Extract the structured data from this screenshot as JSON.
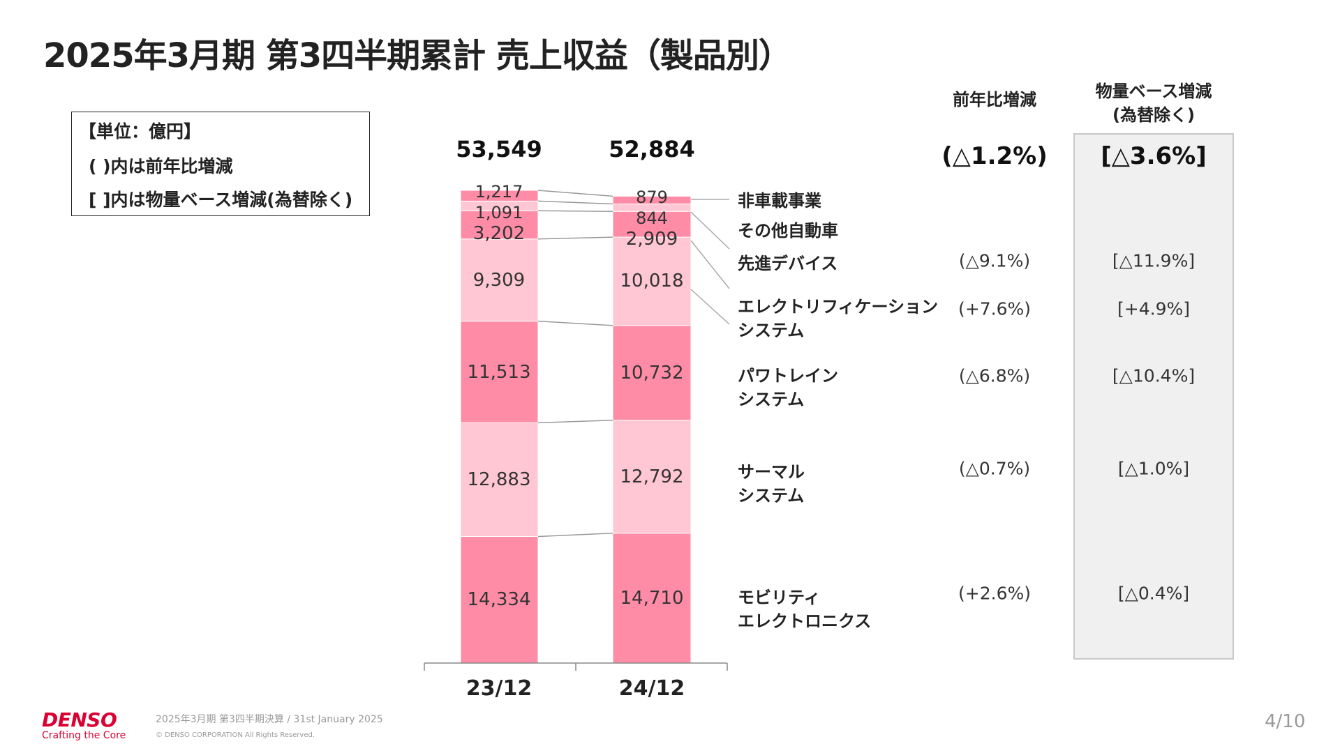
{
  "title": "2025年3月期 第3四半期累計 売上収益（製品別）",
  "unit_box": {
    "line1": "【単位：億円】",
    "line2": "( )内は前年比増減",
    "line3": "[ ]内は物量ベース増減(為替除く)"
  },
  "columns": {
    "yoy_header": "前年比増減",
    "volume_header_1": "物量ベース増減",
    "volume_header_2": "(為替除く)"
  },
  "colors": {
    "dark": "#ff8ca6",
    "light": "#ffc6d3",
    "connector": "#999999",
    "brand": "#dc0032"
  },
  "chart_data": {
    "type": "bar",
    "stacked": true,
    "categories": [
      "23/12",
      "24/12"
    ],
    "totals": [
      "53,549",
      "52,884"
    ],
    "total_values": [
      53549,
      52884
    ],
    "series": [
      {
        "name": "モビリティエレクトロニクス",
        "label_lines": [
          "モビリティ",
          "エレクトロニクス"
        ],
        "values": [
          14334,
          14710
        ],
        "labels": [
          "14,334",
          "14,710"
        ],
        "shade": "dark",
        "yoy": "(+2.6%)",
        "volume": "[△0.4%]"
      },
      {
        "name": "サーマルシステム",
        "label_lines": [
          "サーマル",
          "システム"
        ],
        "values": [
          12883,
          12792
        ],
        "labels": [
          "12,883",
          "12,792"
        ],
        "shade": "light",
        "yoy": "(△0.7%)",
        "volume": "[△1.0%]"
      },
      {
        "name": "パワトレインシステム",
        "label_lines": [
          "パワトレイン",
          "システム"
        ],
        "values": [
          11513,
          10732
        ],
        "labels": [
          "11,513",
          "10,732"
        ],
        "shade": "dark",
        "yoy": "(△6.8%)",
        "volume": "[△10.4%]"
      },
      {
        "name": "エレクトリフィケーションシステム",
        "label_lines": [
          "エレクトリフィケーション",
          "システム"
        ],
        "values": [
          9309,
          10018
        ],
        "labels": [
          "9,309",
          "10,018"
        ],
        "shade": "light",
        "yoy": "(+7.6%)",
        "volume": "[+4.9%]"
      },
      {
        "name": "先進デバイス",
        "label_lines": [
          "先進デバイス"
        ],
        "values": [
          3202,
          2909
        ],
        "labels": [
          "3,202",
          "2,909"
        ],
        "shade": "dark",
        "yoy": "(△9.1%)",
        "volume": "[△11.9%]"
      },
      {
        "name": "その他自動車",
        "label_lines": [
          "その他自動車"
        ],
        "values": [
          1091,
          844
        ],
        "labels": [
          "1,091",
          "844"
        ],
        "shade": "light",
        "yoy": "",
        "volume": ""
      },
      {
        "name": "非車載事業",
        "label_lines": [
          "非車載事業"
        ],
        "values": [
          1217,
          879
        ],
        "labels": [
          "1,217",
          "879"
        ],
        "shade": "dark",
        "yoy": "",
        "volume": ""
      }
    ],
    "total_yoy": "(△1.2%)",
    "total_volume": "[△3.6%]",
    "ylim": [
      0,
      53549
    ]
  },
  "footer": {
    "logo": "DENSO",
    "tagline": "Crafting the Core",
    "text": "2025年3月期 第3四半期決算 / 31st January 2025",
    "copyright": "© DENSO CORPORATION All Rights Reserved.",
    "page": "4/10"
  }
}
